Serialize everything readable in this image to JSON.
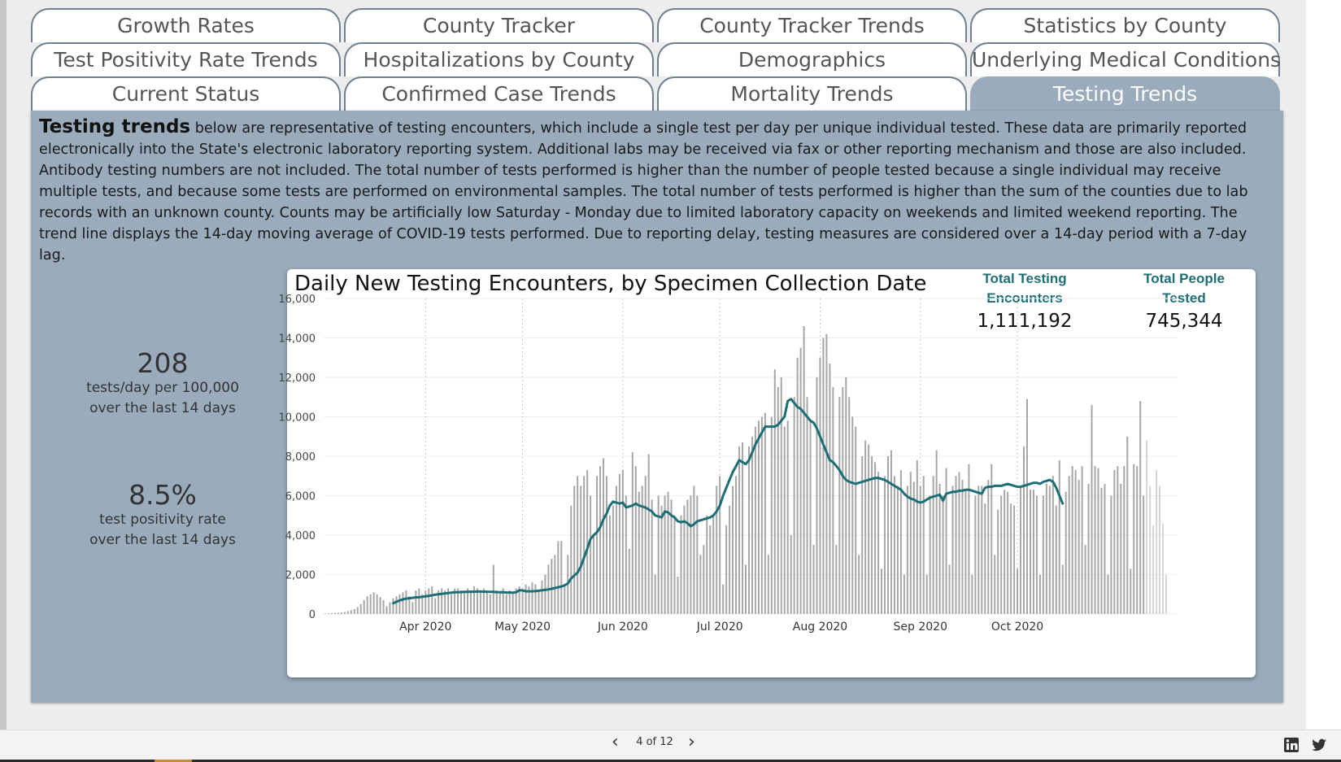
{
  "tabs": [
    {
      "label": "Growth Rates",
      "active": false
    },
    {
      "label": "County Tracker",
      "active": false
    },
    {
      "label": "County Tracker Trends",
      "active": false
    },
    {
      "label": "Statistics by County",
      "active": false
    },
    {
      "label": "Test Positivity Rate Trends",
      "active": false
    },
    {
      "label": "Hospitalizations by County",
      "active": false
    },
    {
      "label": "Demographics",
      "active": false
    },
    {
      "label": "Underlying Medical Conditions",
      "active": false
    },
    {
      "label": "Current Status",
      "active": false
    },
    {
      "label": "Confirmed Case Trends",
      "active": false
    },
    {
      "label": "Mortality Trends",
      "active": false
    },
    {
      "label": "Testing Trends",
      "active": true
    }
  ],
  "description": {
    "lead": "Testing trends",
    "body": " below are representative of testing encounters, which include a single test per day per unique individual tested. These data are primarily reported electronically into the State's electronic laboratory reporting system. Additional labs may be received via fax or other reporting mechanism and those are also included.  Antibody testing numbers are not included.  The total number of tests performed is higher than the number of people tested because a single individual may receive multiple tests, and because some tests are performed on environmental samples.  The total number of tests performed is higher than the sum of the counties due to lab records with an unknown county.  Counts may be artificially low Saturday - Monday due to limited laboratory capacity on weekends and limited weekend reporting.  The trend line displays the 14-day moving average of COVID-19 tests performed.  Due to reporting delay, testing measures are considered over a 14-day period with a 7-day lag."
  },
  "kpis": {
    "tests_rate": {
      "value": "208",
      "line1": "tests/day per 100,000",
      "line2": "over the last 14 days"
    },
    "positivity": {
      "value": "8.5%",
      "line1": "test positivity rate",
      "line2": "over the last 14 days"
    }
  },
  "card": {
    "encounters_label_1": "Total Testing",
    "encounters_label_2": "Encounters",
    "encounters_value": "1,111,192",
    "people_label_1": "Total People",
    "people_label_2": "Tested",
    "people_value": "745,344"
  },
  "footer": {
    "page_indicator": "4 of 12",
    "prev_arrow": "‹",
    "next_arrow": "›"
  },
  "colors": {
    "bar": "#a6a6a6",
    "bar_lagged": "#d4d4d4",
    "trend": "#1d6f76",
    "panel": "#9aabbc",
    "accent_text": "#1d6f76"
  },
  "chart_data": {
    "type": "bar",
    "title": "Daily New Testing Encounters, by Specimen Collection Date",
    "xlabel": "",
    "ylabel": "",
    "ylim": [
      0,
      16000
    ],
    "yticks": [
      0,
      2000,
      4000,
      6000,
      8000,
      10000,
      12000,
      14000,
      16000
    ],
    "ytick_labels": [
      "0",
      "2,000",
      "4,000",
      "6,000",
      "8,000",
      "10,000",
      "12,000",
      "14,000",
      "16,000"
    ],
    "x_start": "2020-03-01",
    "xticks": [
      {
        "date": "2020-04-01",
        "label": "Apr 2020"
      },
      {
        "date": "2020-05-01",
        "label": "May 2020"
      },
      {
        "date": "2020-06-01",
        "label": "Jun 2020"
      },
      {
        "date": "2020-07-01",
        "label": "Jul 2020"
      },
      {
        "date": "2020-08-01",
        "label": "Aug 2020"
      },
      {
        "date": "2020-09-01",
        "label": "Sep 2020"
      },
      {
        "date": "2020-10-01",
        "label": "Oct 2020"
      }
    ],
    "grid": true,
    "lag_days": 7,
    "series": [
      {
        "values": [
          20,
          30,
          40,
          50,
          60,
          80,
          100,
          150,
          200,
          250,
          350,
          500,
          700,
          900,
          1000,
          1100,
          1000,
          850,
          700,
          400,
          600,
          800,
          900,
          1000,
          1100,
          1200,
          900,
          600,
          1200,
          1300,
          1000,
          1200,
          1300,
          1400,
          800,
          1200,
          1300,
          1200,
          1300,
          1000,
          1300,
          1300,
          1200,
          1100,
          1300,
          1200,
          1400,
          1300,
          1200,
          1300,
          1100,
          1000,
          2500,
          1200,
          1100,
          1300,
          1000,
          1200,
          1100,
          1300,
          1400,
          1200,
          1500,
          1400,
          1600,
          1500,
          1200,
          1700,
          2000,
          2500,
          2800,
          3000,
          3700,
          3700,
          1500,
          3000,
          5500,
          6500,
          7000,
          6500,
          7000,
          7300,
          6000,
          4000,
          7000,
          7500,
          7900,
          7000,
          5000,
          5500,
          6500,
          7100,
          7300,
          6000,
          3300,
          8200,
          7500,
          6200,
          6500,
          7000,
          8100,
          5800,
          2000,
          6000,
          5500,
          6000,
          6200,
          5800,
          5000,
          1900,
          5000,
          5500,
          5800,
          6000,
          6500,
          6000,
          3000,
          3500,
          5000,
          4500,
          5000,
          6500,
          7000,
          1500,
          4500,
          5500,
          6500,
          7000,
          8500,
          8700,
          2500,
          8500,
          9000,
          9500,
          9800,
          10000,
          10200,
          3000,
          10000,
          12400,
          11500,
          12000,
          9500,
          9800,
          4000,
          11000,
          13000,
          13500,
          14600,
          11000,
          9800,
          3500,
          12000,
          13000,
          14000,
          14200,
          12700,
          11500,
          3500,
          11000,
          11500,
          12000,
          11000,
          10000,
          9500,
          3000,
          8000,
          8800,
          8600,
          8000,
          7700,
          7200,
          2300,
          7000,
          8000,
          8300,
          7000,
          6500,
          7300,
          2000,
          6500,
          7200,
          6700,
          7800,
          6500,
          7000,
          2000,
          6000,
          7000,
          8300,
          6600,
          6000,
          7400,
          2500,
          6500,
          7000,
          7200,
          6800,
          6300,
          7600,
          2000,
          6000,
          6500,
          6500,
          5600,
          6800,
          7600,
          3000,
          5300,
          6000,
          6300,
          6200,
          5600,
          5500,
          2300,
          6400,
          8500,
          10900,
          6300,
          6300,
          6000,
          2000,
          6000,
          6600,
          6500,
          7000,
          5500,
          7800,
          2500,
          6200,
          7000,
          7500,
          7300,
          6800,
          7500,
          3500,
          6600,
          10600,
          7500,
          7400,
          6400,
          6600,
          2000,
          6000,
          7300,
          7500,
          6600,
          7500,
          9000,
          2300,
          7600,
          7500,
          10800,
          6000,
          8800,
          6500,
          4500,
          7300,
          6500,
          4600,
          2000
        ]
      },
      {
        "name": "",
        "type": "line",
        "start_index": 21,
        "values": [
          550,
          620,
          690,
          740,
          780,
          800,
          820,
          840,
          850,
          870,
          900,
          920,
          950,
          980,
          1000,
          1020,
          1040,
          1060,
          1080,
          1100,
          1100,
          1110,
          1120,
          1120,
          1130,
          1130,
          1140,
          1140,
          1130,
          1130,
          1120,
          1120,
          1110,
          1100,
          1100,
          1090,
          1090,
          1080,
          1100,
          1200,
          1200,
          1150,
          1150,
          1150,
          1160,
          1180,
          1200,
          1220,
          1250,
          1280,
          1320,
          1350,
          1400,
          1450,
          1550,
          1800,
          1950,
          2100,
          2400,
          2850,
          3300,
          3800,
          4000,
          4150,
          4400,
          4800,
          5100,
          5500,
          5700,
          5650,
          5600,
          5650,
          5400,
          5450,
          5500,
          5600,
          5500,
          5450,
          5400,
          5300,
          5200,
          5000,
          4950,
          4900,
          5200,
          5150,
          5000,
          4900,
          4700,
          4650,
          4700,
          4600,
          4450,
          4550,
          4700,
          4750,
          4800,
          4850,
          4900,
          5000,
          5200,
          5500,
          6000,
          6400,
          6800,
          7200,
          7500,
          7800,
          7700,
          7600,
          7800,
          8200,
          8600,
          8900,
          9200,
          9500,
          9500,
          9500,
          9500,
          9600,
          9800,
          10000,
          10800,
          10900,
          10700,
          10500,
          10400,
          10200,
          10000,
          9800,
          9700,
          9400,
          9000,
          8600,
          8200,
          7800,
          7700,
          7500,
          7300,
          7000,
          6800,
          6700,
          6650,
          6600,
          6650,
          6700,
          6750,
          6800,
          6850,
          6900,
          6900,
          6850,
          6800,
          6700,
          6600,
          6500,
          6400,
          6300,
          6100,
          5950,
          5850,
          5800,
          5700,
          5650,
          5700,
          5800,
          5900,
          5950,
          6000,
          6050,
          5750,
          6100,
          6150,
          6200,
          6200,
          6250,
          6250,
          6300,
          6300,
          6250,
          6200,
          6150,
          6100,
          6400,
          6450,
          6450,
          6500,
          6500,
          6500,
          6550,
          6600,
          6550,
          6500,
          6450,
          6450,
          6500,
          6550,
          6600,
          6650,
          6650,
          6600,
          6700,
          6750,
          6800,
          6700,
          6400,
          6000,
          5600
        ]
      }
    ]
  }
}
